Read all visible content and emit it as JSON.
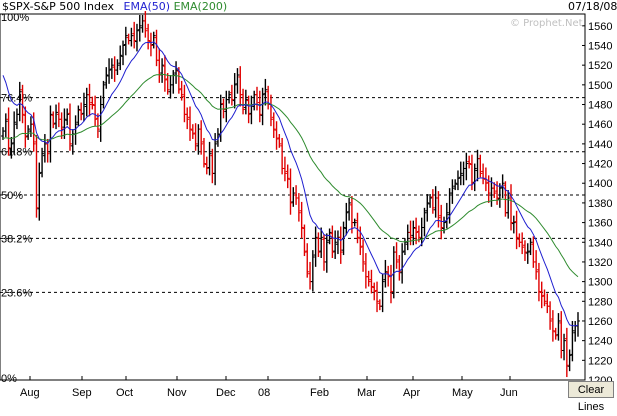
{
  "header": {
    "symbol": "$SPX-S&P 500 Index",
    "ema50": "EMA(50)",
    "ema200": "EMA(200)",
    "date": "07/18/08",
    "watermark": "© Prophet.Net"
  },
  "clear_button": "Clear Lines",
  "colors": {
    "ema50": "#1f1fd0",
    "ema200": "#2e8b2e",
    "up_bar": "#000000",
    "down_bar": "#e00000",
    "grid": "#000000",
    "accent_symbol": "#000000"
  },
  "chart_data": {
    "type": "ohlc",
    "title": "$SPX-S&P 500 Index",
    "x_labels": [
      "Aug",
      "Sep",
      "Oct",
      "Nov",
      "Dec",
      "08",
      "Feb",
      "Mar",
      "Apr",
      "May",
      "Jun"
    ],
    "ylim": [
      1200,
      1570
    ],
    "yticks": [
      1200,
      1220,
      1240,
      1260,
      1280,
      1300,
      1320,
      1340,
      1360,
      1380,
      1400,
      1420,
      1440,
      1460,
      1480,
      1500,
      1520,
      1540,
      1560
    ],
    "fib_levels": [
      {
        "label": "100%",
        "value": 1575
      },
      {
        "label": "76.4%",
        "value": 1487
      },
      {
        "label": "61.8%",
        "value": 1432
      },
      {
        "label": "50%",
        "value": 1388
      },
      {
        "label": "38.2%",
        "value": 1344
      },
      {
        "label": "23.6%",
        "value": 1289
      },
      {
        "label": "0%",
        "value": 1200
      }
    ],
    "close": [
      1453,
      1463,
      1436,
      1440,
      1462,
      1470,
      1493,
      1470,
      1447,
      1455,
      1460,
      1440,
      1375,
      1410,
      1430,
      1440,
      1430,
      1470,
      1460,
      1472,
      1465,
      1455,
      1465,
      1470,
      1440,
      1450,
      1460,
      1475,
      1470,
      1480,
      1490,
      1480,
      1480,
      1465,
      1455,
      1480,
      1500,
      1510,
      1515,
      1520,
      1515,
      1520,
      1530,
      1540,
      1550,
      1545,
      1550,
      1545,
      1555,
      1560,
      1565,
      1555,
      1545,
      1540,
      1550,
      1525,
      1510,
      1520,
      1505,
      1495,
      1500,
      1510,
      1515,
      1495,
      1490,
      1470,
      1465,
      1455,
      1450,
      1440,
      1455,
      1440,
      1420,
      1415,
      1430,
      1410,
      1440,
      1450,
      1480,
      1475,
      1485,
      1490,
      1485,
      1500,
      1510,
      1490,
      1475,
      1485,
      1470,
      1480,
      1490,
      1480,
      1470,
      1490,
      1495,
      1480,
      1465,
      1455,
      1445,
      1440,
      1415,
      1410,
      1405,
      1380,
      1390,
      1385,
      1370,
      1355,
      1330,
      1310,
      1300,
      1325,
      1345,
      1330,
      1345,
      1320,
      1340,
      1350,
      1330,
      1340,
      1345,
      1330,
      1355,
      1370,
      1380,
      1360,
      1360,
      1345,
      1335,
      1320,
      1305,
      1300,
      1295,
      1290,
      1280,
      1275,
      1300,
      1310,
      1305,
      1290,
      1330,
      1320,
      1310,
      1330,
      1340,
      1350,
      1345,
      1355,
      1350,
      1345,
      1355,
      1370,
      1380,
      1385,
      1375,
      1385,
      1365,
      1355,
      1360,
      1370,
      1390,
      1395,
      1400,
      1405,
      1410,
      1415,
      1420,
      1420,
      1400,
      1415,
      1425,
      1410,
      1405,
      1400,
      1390,
      1395,
      1390,
      1385,
      1395,
      1400,
      1370,
      1385,
      1360,
      1360,
      1345,
      1340,
      1335,
      1330,
      1330,
      1340,
      1320,
      1310,
      1290,
      1285,
      1280,
      1275,
      1260,
      1250,
      1245,
      1260,
      1230,
      1240,
      1215,
      1225,
      1250,
      1255,
      1260
    ]
  },
  "chart_labels": {
    "y": [
      "1200",
      "1220",
      "1240",
      "1260",
      "1280",
      "1300",
      "1320",
      "1340",
      "1360",
      "1380",
      "1400",
      "1420",
      "1440",
      "1460",
      "1480",
      "1500",
      "1520",
      "1540",
      "1560"
    ]
  }
}
